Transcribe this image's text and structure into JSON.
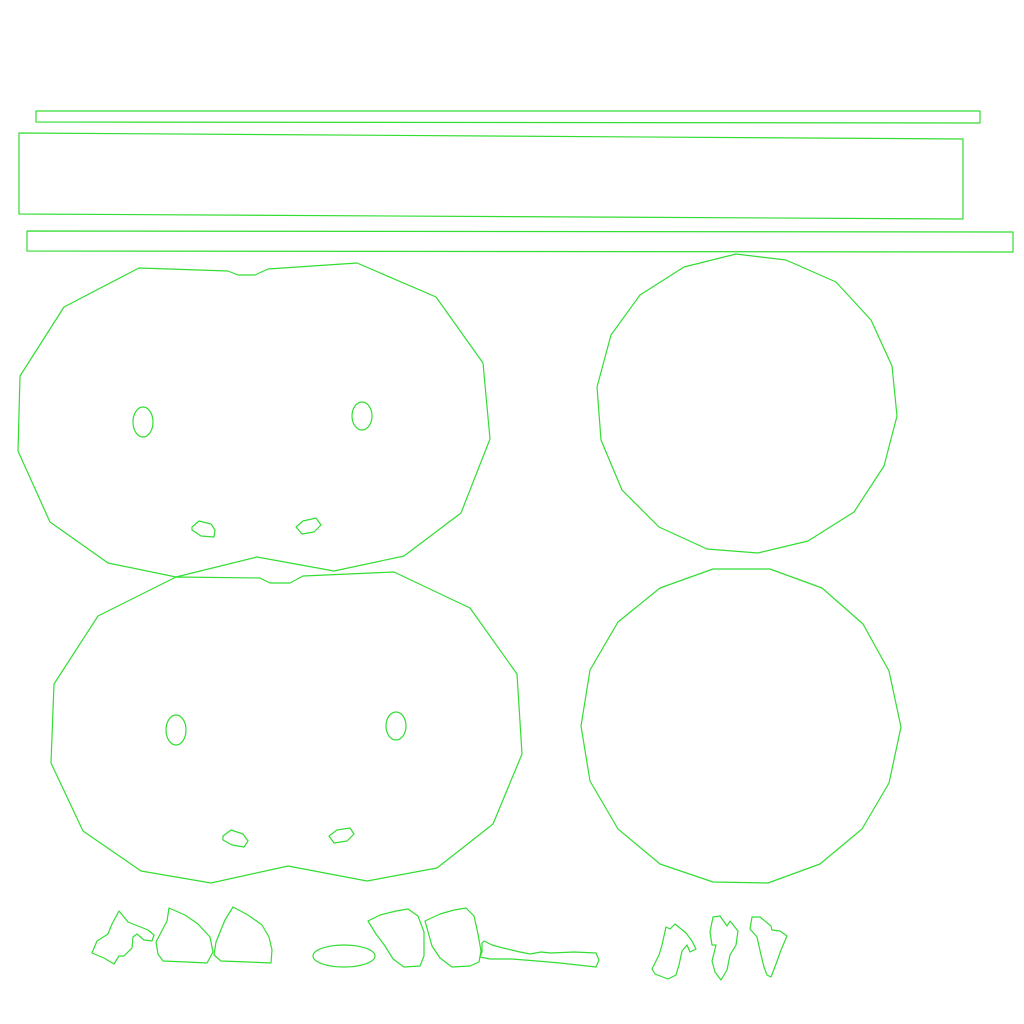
{
  "colors": {
    "background": "#ffffff",
    "outline": "#33dd33"
  },
  "description_visible_text": "",
  "groups": {
    "strips": [
      "strip-thin-top",
      "strip-wide",
      "strip-thin-bottom"
    ],
    "faces": [
      "face-shape-top",
      "face-shape-bottom"
    ],
    "discs": [
      "disc-top",
      "disc-bottom"
    ],
    "fragments": [
      "fragment-cluster-left",
      "fragment-cluster-middle",
      "fragment-cluster-right"
    ]
  }
}
